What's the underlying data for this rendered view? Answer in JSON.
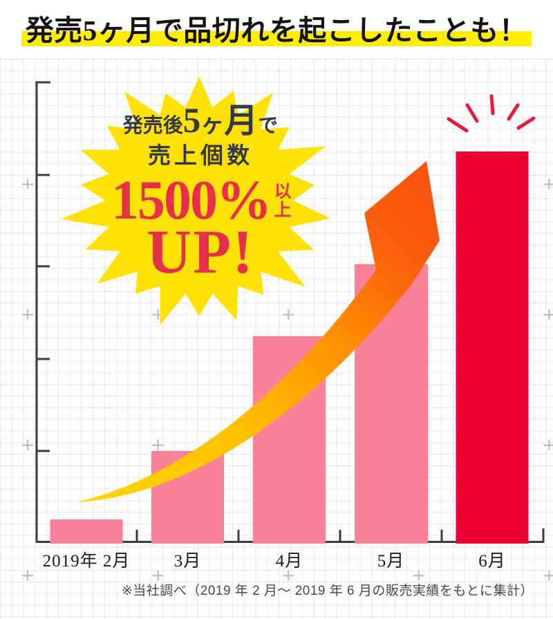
{
  "title": {
    "text": "発売5ヶ月で品切れを起こしたことも！",
    "highlight_color": "#ffee00",
    "text_color": "#141414"
  },
  "badge": {
    "line1": {
      "pre": "発売後",
      "num": "5",
      "kana": "ヶ",
      "month": "月",
      "suffix": "で"
    },
    "line2": "売上個数",
    "rate": "1500%",
    "rate_suffix": "以上",
    "up": "UP!",
    "star_color": "#ffe205",
    "text_color": "#343943",
    "accent_color": "#e6304b"
  },
  "chart_data": {
    "type": "bar",
    "title": "発売5ヶ月で品切れを起こしたことも！",
    "categories": [
      "2019年 2月",
      "3月",
      "4月",
      "5月",
      "6月"
    ],
    "values": [
      100,
      383,
      857,
      1154,
      1620
    ],
    "values_estimated_from_bar_heights": true,
    "value_basis": "売上個数（2019年2月＝100、6月は1500%以上UP）",
    "ylim": [
      0,
      1700
    ],
    "bar_colors": [
      "#fa8298",
      "#fa8298",
      "#fa8298",
      "#fa8298",
      "#ec0233"
    ],
    "highlight_index": 4,
    "annotation": "発売後5ヶ月で売上個数1500%以上UP!",
    "grid": true,
    "legend": false,
    "arrow_colors": {
      "tail": "#ffd400",
      "head": "#f8540e"
    },
    "rays_color": "#e81941",
    "axis_color": "#3c3c3c"
  },
  "footnote": {
    "text": "※当社調べ（2019 年 2 月～ 2019 年 6 月の販売実績をもとに集計）"
  }
}
